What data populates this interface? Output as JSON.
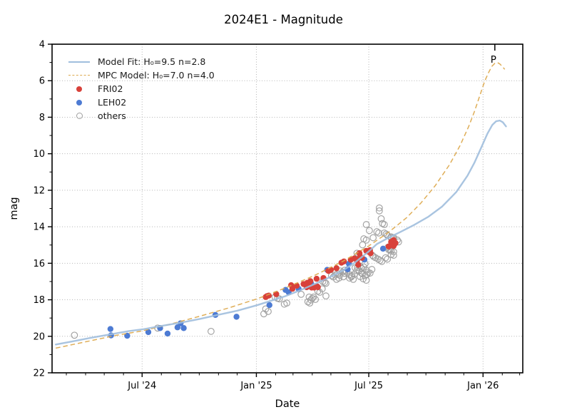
{
  "chart_data": {
    "type": "scatter",
    "title": "2024E1 - Magnitude",
    "xlabel": "Date",
    "ylabel": "mag",
    "x_unit": "days since 2024-01-01",
    "x_domain": [
      37,
      795
    ],
    "y_domain": [
      4,
      22
    ],
    "y_inverted": true,
    "grid": true,
    "legend_position": "upper left",
    "xticks": [
      {
        "day": 182,
        "label": "Jul '24"
      },
      {
        "day": 366,
        "label": "Jan '25"
      },
      {
        "day": 547,
        "label": "Jul '25"
      },
      {
        "day": 731,
        "label": "Jan '26"
      }
    ],
    "xminor_days": [
      60,
      91,
      121,
      152,
      213,
      244,
      274,
      305,
      335,
      397,
      425,
      456,
      486,
      517,
      578,
      609,
      639,
      670,
      700,
      762,
      790
    ],
    "yticks": [
      4,
      6,
      8,
      10,
      12,
      14,
      16,
      18,
      20,
      22
    ],
    "yminor": [
      5,
      7,
      9,
      11,
      13,
      15,
      17,
      19,
      21
    ],
    "annotation": {
      "label": "P",
      "day": 750
    },
    "colors": {
      "model_fit": "#a0bedd",
      "mpc_model": "#ddaa4f",
      "fri02": "#d8413a",
      "leh02": "#4d7bd3",
      "others": "#a0a0a0",
      "grid": "#b5b5b5",
      "axis": "#000000"
    },
    "series": {
      "model_fit": {
        "name": "Model Fit: H₀=9.5 n=2.8",
        "style": "line",
        "points": [
          [
            43,
            20.45
          ],
          [
            70,
            20.28
          ],
          [
            100,
            20.08
          ],
          [
            130,
            19.9
          ],
          [
            160,
            19.72
          ],
          [
            183,
            19.62
          ],
          [
            215,
            19.42
          ],
          [
            245,
            19.25
          ],
          [
            275,
            19.05
          ],
          [
            305,
            18.82
          ],
          [
            335,
            18.6
          ],
          [
            367,
            18.3
          ],
          [
            390,
            18.05
          ],
          [
            413,
            17.8
          ],
          [
            435,
            17.5
          ],
          [
            459,
            17.15
          ],
          [
            482,
            16.8
          ],
          [
            505,
            16.4
          ],
          [
            525,
            15.95
          ],
          [
            547,
            15.35
          ],
          [
            560,
            14.95
          ],
          [
            579,
            14.6
          ],
          [
            597,
            14.3
          ],
          [
            620,
            13.9
          ],
          [
            643,
            13.45
          ],
          [
            665,
            12.9
          ],
          [
            688,
            12.1
          ],
          [
            706,
            11.2
          ],
          [
            717,
            10.5
          ],
          [
            729,
            9.6
          ],
          [
            738,
            8.9
          ],
          [
            746,
            8.42
          ],
          [
            752,
            8.22
          ],
          [
            758,
            8.18
          ],
          [
            763,
            8.28
          ],
          [
            768,
            8.5
          ]
        ]
      },
      "mpc_model": {
        "name": "MPC Model: H₀=7.0 n=4.0",
        "style": "dashed-line",
        "points": [
          [
            43,
            20.65
          ],
          [
            91,
            20.3
          ],
          [
            140,
            19.95
          ],
          [
            183,
            19.7
          ],
          [
            229,
            19.32
          ],
          [
            275,
            18.9
          ],
          [
            321,
            18.45
          ],
          [
            367,
            17.95
          ],
          [
            413,
            17.35
          ],
          [
            459,
            16.68
          ],
          [
            505,
            15.9
          ],
          [
            547,
            15.05
          ],
          [
            579,
            14.3
          ],
          [
            608,
            13.5
          ],
          [
            631,
            12.7
          ],
          [
            654,
            11.75
          ],
          [
            677,
            10.6
          ],
          [
            694,
            9.55
          ],
          [
            708,
            8.5
          ],
          [
            717,
            7.7
          ],
          [
            724,
            7.0
          ],
          [
            729,
            6.5
          ],
          [
            734,
            6.0
          ],
          [
            740,
            5.55
          ],
          [
            745,
            5.22
          ],
          [
            750,
            5.05
          ],
          [
            754,
            5.0
          ],
          [
            758,
            5.08
          ],
          [
            762,
            5.22
          ],
          [
            766,
            5.38
          ]
        ]
      },
      "fri02": {
        "name": "FRI02",
        "style": "filled-dot",
        "points": [
          [
            381,
            17.85
          ],
          [
            383,
            17.8
          ],
          [
            386,
            17.77
          ],
          [
            398,
            17.69
          ],
          [
            422,
            17.2
          ],
          [
            424,
            17.4
          ],
          [
            431,
            17.23
          ],
          [
            442,
            17.14
          ],
          [
            447,
            17.31
          ],
          [
            448,
            17.07
          ],
          [
            451,
            17.23
          ],
          [
            453,
            16.98
          ],
          [
            455,
            17.33
          ],
          [
            459,
            17.33
          ],
          [
            461,
            17.27
          ],
          [
            463,
            16.85
          ],
          [
            464,
            17.27
          ],
          [
            465,
            17.31
          ],
          [
            474,
            16.81
          ],
          [
            482,
            16.42
          ],
          [
            486,
            16.36
          ],
          [
            495,
            16.27
          ],
          [
            503,
            15.97
          ],
          [
            507,
            15.9
          ],
          [
            518,
            15.81
          ],
          [
            524,
            15.73
          ],
          [
            528,
            15.84
          ],
          [
            530,
            16.08
          ],
          [
            532,
            15.45
          ],
          [
            533,
            15.64
          ],
          [
            536,
            15.7
          ],
          [
            543,
            15.32
          ],
          [
            547,
            15.38
          ],
          [
            549,
            15.28
          ],
          [
            550,
            15.45
          ],
          [
            579,
            15.08
          ],
          [
            583,
            14.99
          ],
          [
            583,
            14.83
          ],
          [
            587,
            14.73
          ],
          [
            587,
            15.05
          ],
          [
            589,
            14.93
          ],
          [
            590,
            14.89
          ]
        ]
      },
      "leh02": {
        "name": "LEH02",
        "style": "filled-dot",
        "points": [
          [
            131,
            19.6
          ],
          [
            132,
            19.95
          ],
          [
            158,
            19.97
          ],
          [
            192,
            19.77
          ],
          [
            211,
            19.55
          ],
          [
            223,
            19.85
          ],
          [
            239,
            19.51
          ],
          [
            244,
            19.29
          ],
          [
            249,
            19.55
          ],
          [
            300,
            18.83
          ],
          [
            334,
            18.93
          ],
          [
            387,
            18.29
          ],
          [
            413,
            17.46
          ],
          [
            418,
            17.59
          ],
          [
            434,
            17.4
          ],
          [
            454,
            17.1
          ],
          [
            480,
            16.36
          ],
          [
            513,
            16.33
          ],
          [
            515,
            16.03
          ],
          [
            540,
            15.8
          ],
          [
            570,
            15.2
          ]
        ]
      },
      "others": {
        "name": "others",
        "style": "open-circle",
        "points": [
          [
            73,
            19.94
          ],
          [
            207,
            19.55
          ],
          [
            293,
            19.73
          ],
          [
            378,
            18.77
          ],
          [
            381,
            18.5
          ],
          [
            385,
            18.64
          ],
          [
            396,
            17.85
          ],
          [
            400,
            17.92
          ],
          [
            403,
            17.95
          ],
          [
            411,
            18.24
          ],
          [
            415,
            18.18
          ],
          [
            438,
            17.7
          ],
          [
            449,
            18.11
          ],
          [
            451,
            17.85
          ],
          [
            452,
            18.18
          ],
          [
            454,
            18.01
          ],
          [
            456,
            17.92
          ],
          [
            458,
            17.85
          ],
          [
            461,
            17.98
          ],
          [
            465,
            17.53
          ],
          [
            468,
            17.59
          ],
          [
            472,
            17.4
          ],
          [
            473,
            17.0
          ],
          [
            476,
            17.05
          ],
          [
            478,
            17.1
          ],
          [
            478,
            17.79
          ],
          [
            487,
            16.68
          ],
          [
            490,
            16.75
          ],
          [
            493,
            16.64
          ],
          [
            495,
            16.88
          ],
          [
            497,
            16.58
          ],
          [
            499,
            16.81
          ],
          [
            500,
            16.66
          ],
          [
            501,
            16.42
          ],
          [
            505,
            16.48
          ],
          [
            506,
            16.74
          ],
          [
            508,
            16.38
          ],
          [
            508,
            16.55
          ],
          [
            511,
            16.46
          ],
          [
            516,
            16.62
          ],
          [
            516,
            16.81
          ],
          [
            519,
            16.74
          ],
          [
            520,
            16.68
          ],
          [
            522,
            16.88
          ],
          [
            524,
            16.59
          ],
          [
            525,
            16.25
          ],
          [
            528,
            16.4
          ],
          [
            529,
            16.23
          ],
          [
            531,
            16.42
          ],
          [
            533,
            16.16
          ],
          [
            533,
            16.73
          ],
          [
            535,
            16.53
          ],
          [
            536,
            16.29
          ],
          [
            537,
            16.58
          ],
          [
            538,
            16.85
          ],
          [
            539,
            16.2
          ],
          [
            541,
            16.03
          ],
          [
            541,
            16.68
          ],
          [
            543,
            16.38
          ],
          [
            543,
            16.93
          ],
          [
            544,
            16.62
          ],
          [
            546,
            16.5
          ],
          [
            549,
            16.54
          ],
          [
            552,
            16.34
          ],
          [
            528,
            15.45
          ],
          [
            531,
            15.51
          ],
          [
            537,
            14.99
          ],
          [
            539,
            14.66
          ],
          [
            543,
            14.73
          ],
          [
            543,
            13.88
          ],
          [
            548,
            14.21
          ],
          [
            553,
            15.57
          ],
          [
            555,
            15.64
          ],
          [
            558,
            15.7
          ],
          [
            554,
            14.6
          ],
          [
            560,
            14.27
          ],
          [
            563,
            14.34
          ],
          [
            564,
            12.97
          ],
          [
            564,
            13.13
          ],
          [
            567,
            13.56
          ],
          [
            569,
            13.82
          ],
          [
            572,
            13.88
          ],
          [
            572,
            14.34
          ],
          [
            575,
            14.4
          ],
          [
            577,
            14.47
          ],
          [
            583,
            14.6
          ],
          [
            587,
            14.66
          ],
          [
            593,
            14.73
          ],
          [
            595,
            14.83
          ],
          [
            578,
            15.12
          ],
          [
            581,
            15.25
          ],
          [
            562,
            15.77
          ],
          [
            565,
            15.84
          ],
          [
            568,
            15.9
          ],
          [
            574,
            15.7
          ],
          [
            577,
            15.77
          ],
          [
            579,
            15.25
          ],
          [
            583,
            15.33
          ],
          [
            587,
            15.37
          ],
          [
            583,
            15.52
          ],
          [
            587,
            15.56
          ],
          [
            583,
            14.55
          ],
          [
            587,
            14.59
          ]
        ]
      }
    }
  }
}
